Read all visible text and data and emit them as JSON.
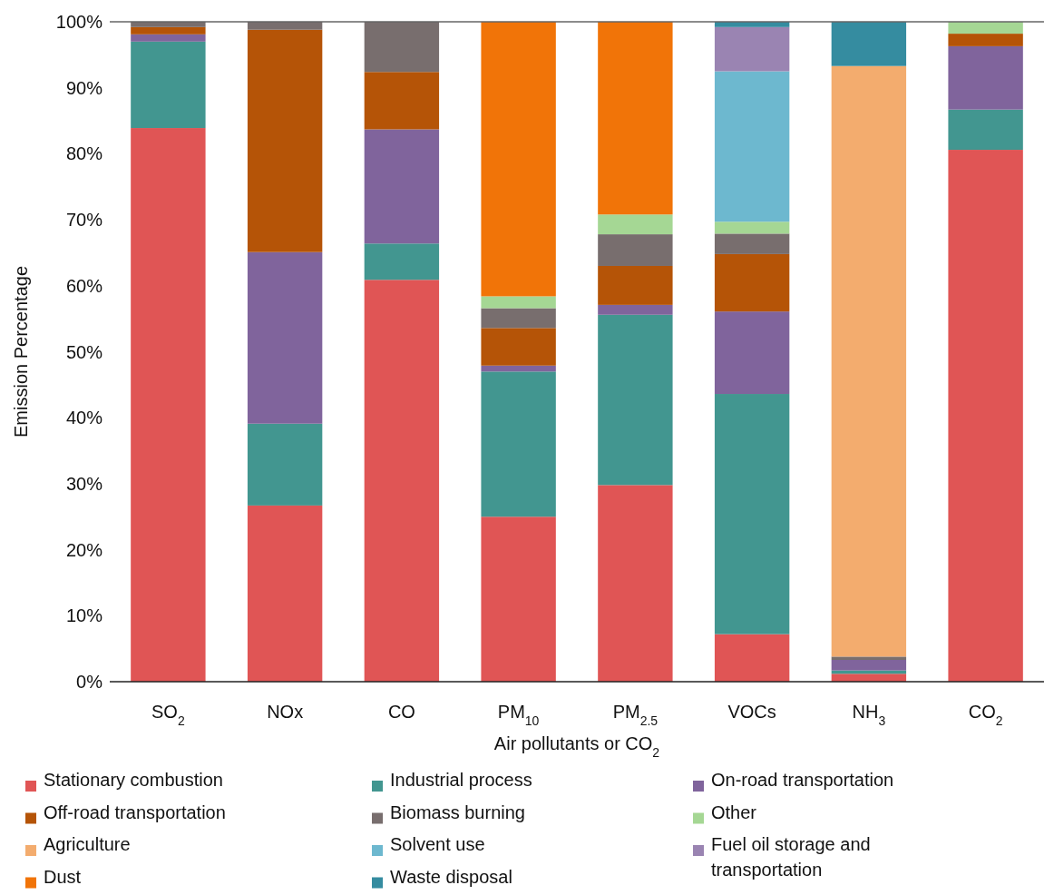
{
  "chart_data": {
    "type": "bar",
    "stacked": true,
    "xlabel": "Air pollutants or CO$_{2}$",
    "ylabel": "Emission Percentage",
    "categories": [
      "SO$_{2}$",
      "NOx",
      "CO",
      "PM$_{10}$",
      "PM$_{2.5}$",
      "VOCs",
      "NH$_{3}$",
      "CO$_{2}$"
    ],
    "ylim": [
      0,
      100
    ],
    "yticks": [
      {
        "value": 0,
        "label": "0%"
      },
      {
        "value": 10,
        "label": "10%"
      },
      {
        "value": 20,
        "label": "20%"
      },
      {
        "value": 30,
        "label": "30%"
      },
      {
        "value": 40,
        "label": "40%"
      },
      {
        "value": 50,
        "label": "50%"
      },
      {
        "value": 60,
        "label": "60%"
      },
      {
        "value": 70,
        "label": "70%"
      },
      {
        "value": 80,
        "label": "80%"
      },
      {
        "value": 90,
        "label": "90%"
      },
      {
        "value": 100,
        "label": "100%"
      }
    ],
    "grid": false,
    "legend": "bottom",
    "series": [
      {
        "name": "Stationary combustion",
        "color": "#e05555",
        "values": [
          83.9,
          26.7,
          60.9,
          25.0,
          29.8,
          7.2,
          1.2,
          80.6
        ]
      },
      {
        "name": "Industrial process",
        "color": "#429690",
        "values": [
          13.1,
          12.4,
          5.5,
          22.0,
          25.8,
          36.4,
          0.5,
          6.1
        ]
      },
      {
        "name": "On-road transportation",
        "color": "#80649c",
        "values": [
          1.1,
          26.0,
          17.3,
          0.9,
          1.5,
          12.5,
          1.6,
          9.6
        ]
      },
      {
        "name": "Off-road transportation",
        "color": "#b55407",
        "values": [
          1.1,
          33.7,
          8.7,
          5.7,
          5.9,
          8.7,
          null,
          1.9
        ]
      },
      {
        "name": "Biomass burning",
        "color": "#786e6e",
        "values": [
          0.8,
          1.2,
          7.6,
          3.0,
          4.8,
          3.1,
          0.5,
          null
        ]
      },
      {
        "name": "Other",
        "color": "#a5d794",
        "values": [
          null,
          null,
          null,
          1.8,
          3.0,
          1.8,
          null,
          1.8
        ]
      },
      {
        "name": "Agriculture",
        "color": "#f3ac6e",
        "values": [
          null,
          null,
          null,
          null,
          null,
          null,
          89.5,
          null
        ]
      },
      {
        "name": "Solvent use",
        "color": "#6db8cf",
        "values": [
          null,
          null,
          null,
          null,
          null,
          22.8,
          null,
          null
        ]
      },
      {
        "name": "Fuel oil storage and transportation",
        "color": "#9a84b2",
        "values": [
          null,
          null,
          null,
          null,
          null,
          6.7,
          null,
          null
        ]
      },
      {
        "name": "Dust",
        "color": "#f17408",
        "values": [
          null,
          null,
          null,
          41.6,
          29.2,
          null,
          null,
          null
        ]
      },
      {
        "name": "Waste disposal",
        "color": "#358ca0",
        "values": [
          null,
          null,
          null,
          null,
          null,
          0.8,
          6.7,
          null
        ]
      }
    ]
  }
}
